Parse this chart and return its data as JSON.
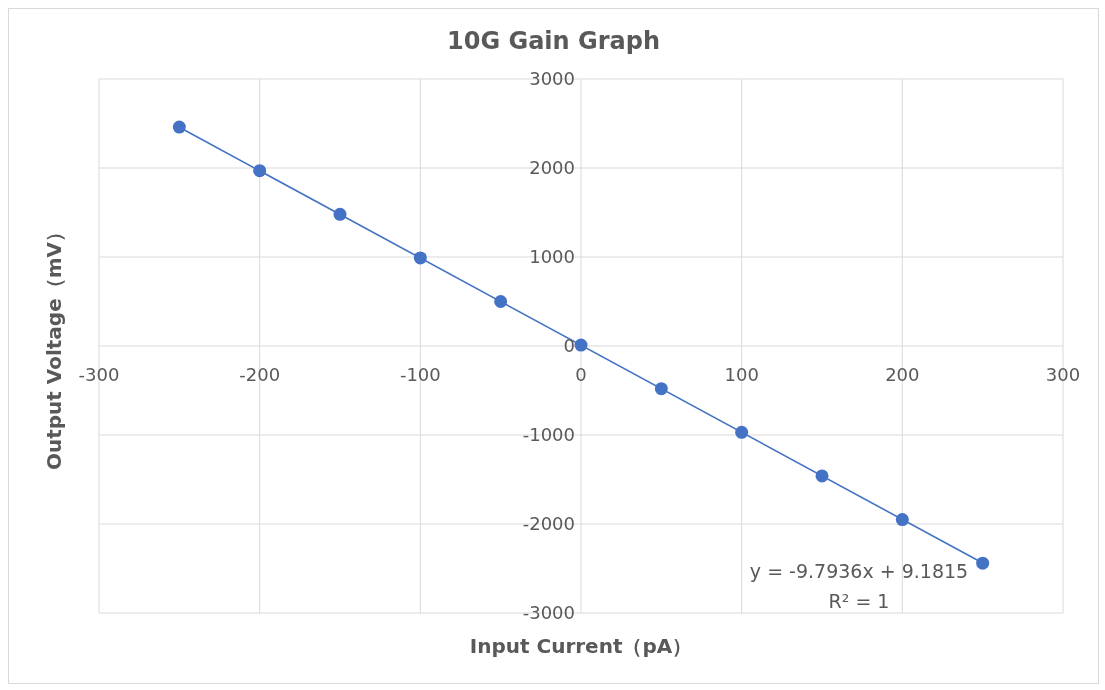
{
  "chart_data": {
    "type": "scatter",
    "title": "10G Gain Graph",
    "xlabel": "Input Current（pA）",
    "ylabel": "Output Voltage（mV）",
    "annotations": [
      "y = -9.7936x + 9.1815",
      "R² = 1"
    ],
    "x": [
      -250,
      -200,
      -150,
      -100,
      -50,
      0,
      50,
      100,
      150,
      200,
      250
    ],
    "series": [
      {
        "marker": "circle",
        "color": "#4472c4",
        "values": [
          2460,
          1970,
          1480,
          990,
          500,
          10,
          -480,
          -970,
          -1460,
          -1950,
          -2440
        ]
      },
      {
        "type": "line",
        "marker": "none",
        "color": "#4472c4",
        "x": [
          -250,
          250
        ],
        "values": [
          2458,
          -2439
        ]
      }
    ],
    "xlim": [
      -300,
      300
    ],
    "xticks": [
      -300,
      -200,
      -100,
      0,
      100,
      200,
      300
    ],
    "ylim": [
      -3000,
      3000
    ],
    "yticks": [
      -3000,
      -2000,
      -1000,
      0,
      1000,
      2000,
      3000
    ],
    "grid": true,
    "line_style": "solid",
    "legend": false
  }
}
